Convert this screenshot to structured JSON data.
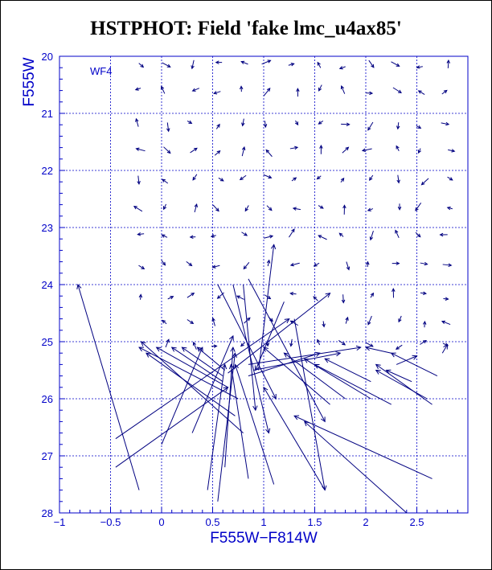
{
  "title": "HSTPHOT: Field 'fake lmc_u4ax85'",
  "chart_data": {
    "type": "scatter",
    "title": "HSTPHOT: Field 'fake lmc_u4ax85'",
    "xlabel": "F555W−F814W",
    "ylabel": "F555W",
    "panel_label": "WF4",
    "xlim": [
      -1,
      3
    ],
    "ylim": [
      28,
      20
    ],
    "y_inverted": true,
    "grid": true,
    "x_ticks": [
      "−1",
      "−0.5",
      "0",
      "0.5",
      "1",
      "1.5",
      "2",
      "2.5"
    ],
    "y_ticks": [
      "20",
      "21",
      "22",
      "23",
      "24",
      "25",
      "26",
      "27",
      "28"
    ],
    "colors": {
      "title": "#22d622",
      "axes": "#0000c8",
      "grid": "#0000c8",
      "arrows": "#000080"
    },
    "note": "",
    "x_tick_values": [
      -1,
      -0.5,
      0,
      0.5,
      1,
      1.5,
      2,
      2.5
    ],
    "y_tick_values": [
      20,
      21,
      22,
      23,
      24,
      25,
      26,
      27,
      28
    ],
    "short_arrow_rows_y": [
      20.15,
      20.6,
      21.2,
      21.65,
      22.15,
      22.65,
      23.15,
      23.65,
      24.2,
      24.65,
      25.05
    ],
    "arrows": [
      {
        "x0": -0.22,
        "y0": 27.6,
        "x1": -0.82,
        "y1": 24.0
      },
      {
        "x0": 0.95,
        "y0": 25.5,
        "x1": 1.1,
        "y1": 23.3
      },
      {
        "x0": 0.65,
        "y0": 25.55,
        "x1": 1.65,
        "y1": 24.15
      },
      {
        "x0": 1.3,
        "y0": 24.6,
        "x1": 1.6,
        "y1": 27.6
      },
      {
        "x0": -0.45,
        "y0": 26.7,
        "x1": 1.25,
        "y1": 24.6
      },
      {
        "x0": 0.7,
        "y0": 24.0,
        "x1": 1.05,
        "y1": 26.6
      },
      {
        "x0": 0.8,
        "y0": 24.0,
        "x1": 0.92,
        "y1": 26.2
      },
      {
        "x0": 1.2,
        "y0": 24.3,
        "x1": 0.92,
        "y1": 25.5
      },
      {
        "x0": 0.85,
        "y0": 23.9,
        "x1": 1.6,
        "y1": 26.4
      },
      {
        "x0": 0.55,
        "y0": 24.0,
        "x1": 1.12,
        "y1": 26.0
      },
      {
        "x0": -0.45,
        "y0": 27.2,
        "x1": 0.65,
        "y1": 25.8
      },
      {
        "x0": 0.55,
        "y0": 27.8,
        "x1": 0.72,
        "y1": 25.2
      },
      {
        "x0": 0.45,
        "y0": 27.6,
        "x1": 0.62,
        "y1": 25.4
      },
      {
        "x0": 0.62,
        "y0": 27.2,
        "x1": 0.7,
        "y1": 25.1
      },
      {
        "x0": 0.3,
        "y0": 26.6,
        "x1": 0.7,
        "y1": 24.9
      },
      {
        "x0": 0.0,
        "y0": 26.8,
        "x1": 0.4,
        "y1": 25.1
      },
      {
        "x0": 0.85,
        "y0": 27.4,
        "x1": 0.68,
        "y1": 25.4
      },
      {
        "x0": 1.1,
        "y0": 27.5,
        "x1": 0.72,
        "y1": 25.4
      },
      {
        "x0": 0.75,
        "y0": 26.0,
        "x1": -0.22,
        "y1": 25.1
      },
      {
        "x0": 0.72,
        "y0": 26.3,
        "x1": -0.15,
        "y1": 25.2
      },
      {
        "x0": 0.8,
        "y0": 26.6,
        "x1": -0.2,
        "y1": 25.0
      },
      {
        "x0": 0.65,
        "y0": 25.8,
        "x1": -0.05,
        "y1": 25.1
      },
      {
        "x0": 0.6,
        "y0": 25.7,
        "x1": 0.1,
        "y1": 25.1
      },
      {
        "x0": 0.6,
        "y0": 25.6,
        "x1": 0.2,
        "y1": 25.1
      },
      {
        "x0": 0.62,
        "y0": 25.5,
        "x1": 0.35,
        "y1": 25.1
      },
      {
        "x0": 0.85,
        "y0": 25.6,
        "x1": 1.55,
        "y1": 25.2
      },
      {
        "x0": 0.9,
        "y0": 25.5,
        "x1": 1.75,
        "y1": 25.2
      },
      {
        "x0": 0.85,
        "y0": 25.4,
        "x1": 1.95,
        "y1": 25.1
      },
      {
        "x0": 2.65,
        "y0": 26.1,
        "x1": 2.1,
        "y1": 25.4
      },
      {
        "x0": 2.6,
        "y0": 26.0,
        "x1": 2.1,
        "y1": 25.5
      },
      {
        "x0": 2.7,
        "y0": 25.6,
        "x1": 2.25,
        "y1": 25.2
      },
      {
        "x0": 2.45,
        "y0": 25.7,
        "x1": 2.2,
        "y1": 25.5
      },
      {
        "x0": 2.05,
        "y0": 25.7,
        "x1": 1.6,
        "y1": 25.3
      },
      {
        "x0": 2.3,
        "y0": 25.4,
        "x1": 2.5,
        "y1": 25.25
      },
      {
        "x0": 2.75,
        "y0": 25.2,
        "x1": 2.8,
        "y1": 25.05
      },
      {
        "x0": 2.25,
        "y0": 25.2,
        "x1": 2.0,
        "y1": 25.1
      },
      {
        "x0": 1.8,
        "y0": 26.0,
        "x1": 1.2,
        "y1": 25.2
      },
      {
        "x0": 2.05,
        "y0": 26.0,
        "x1": 1.4,
        "y1": 25.3
      },
      {
        "x0": 2.25,
        "y0": 26.1,
        "x1": 1.5,
        "y1": 25.4
      },
      {
        "x0": 1.65,
        "y0": 26.1,
        "x1": 1.0,
        "y1": 25.1
      },
      {
        "x0": 2.65,
        "y0": 27.4,
        "x1": 1.3,
        "y1": 26.3
      },
      {
        "x0": 1.6,
        "y0": 27.6,
        "x1": 1.0,
        "y1": 25.8
      },
      {
        "x0": 2.4,
        "y0": 28.0,
        "x1": 1.4,
        "y1": 26.4
      }
    ]
  }
}
